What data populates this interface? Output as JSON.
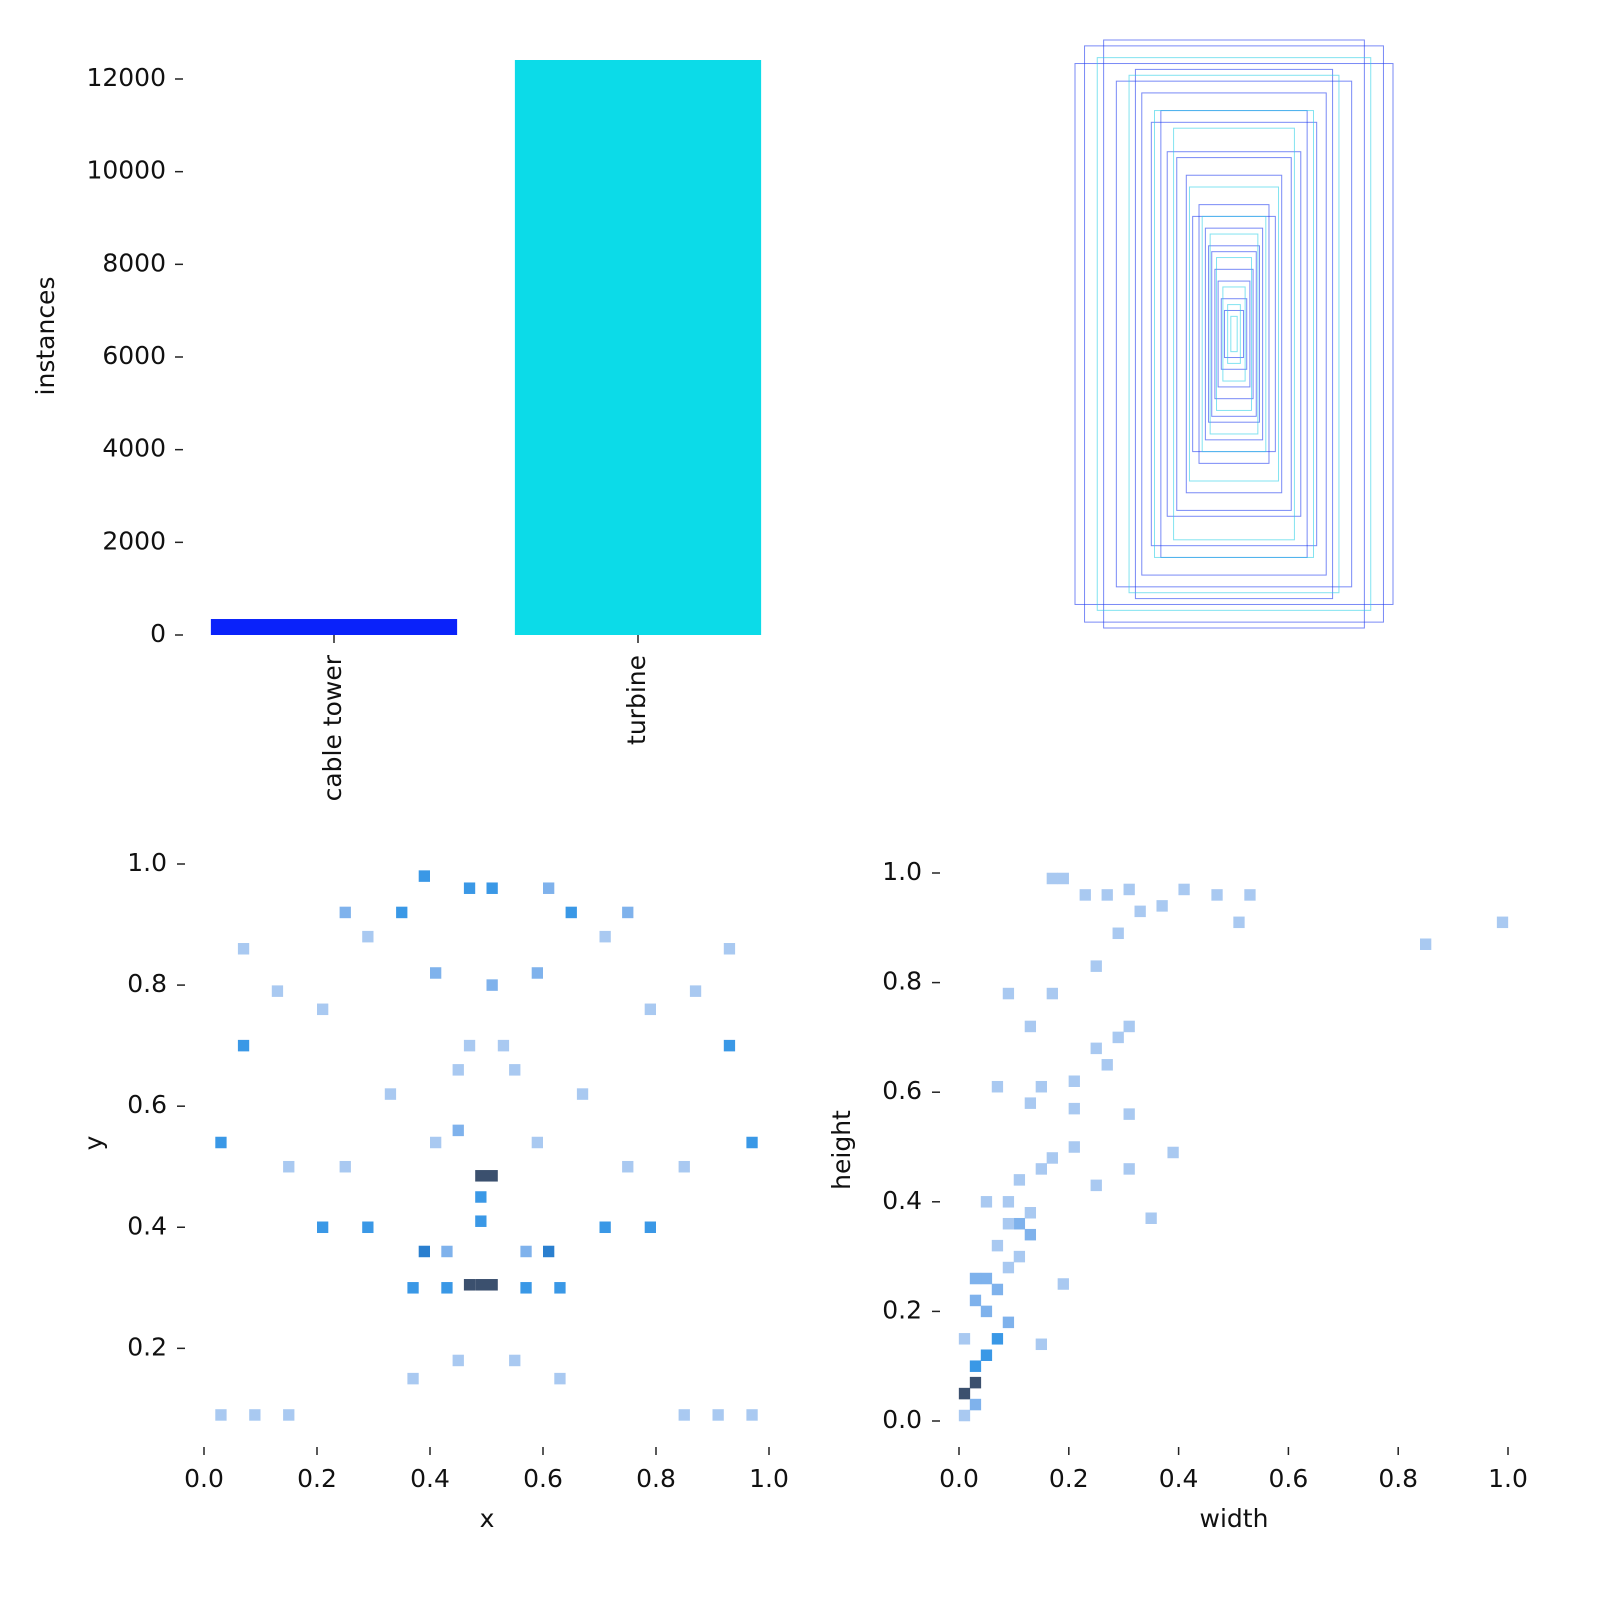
{
  "chart_data": [
    {
      "type": "bar",
      "y_label": "instances",
      "categories": [
        "cable tower",
        "turbine"
      ],
      "values": [
        345,
        12410
      ],
      "colors": [
        "#0a22fa",
        "#0cdbe8"
      ],
      "ylim": [
        0,
        12410
      ],
      "yticks": [
        0,
        2000,
        4000,
        6000,
        8000,
        10000,
        12000
      ]
    },
    {
      "type": "boxes",
      "series": [
        {
          "color": "#1f3cf0",
          "widths": [
            0.94,
            1.0,
            0.82,
            0.74,
            0.58,
            0.52,
            0.42,
            0.36,
            0.3,
            0.26,
            0.22,
            0.18,
            0.16,
            0.14,
            0.12,
            0.1,
            0.08,
            0.06,
            0.46,
            0.62
          ],
          "heights": [
            0.98,
            0.92,
            1.0,
            0.86,
            0.82,
            0.72,
            0.62,
            0.6,
            0.54,
            0.4,
            0.44,
            0.36,
            0.3,
            0.28,
            0.22,
            0.18,
            0.12,
            0.08,
            0.76,
            0.9
          ]
        },
        {
          "color": "#2fd0e6",
          "widths": [
            0.86,
            0.66,
            0.5,
            0.38,
            0.28,
            0.2,
            0.15,
            0.11,
            0.07,
            0.04,
            0.02
          ],
          "heights": [
            0.94,
            0.88,
            0.76,
            0.7,
            0.5,
            0.4,
            0.34,
            0.26,
            0.16,
            0.1,
            0.06
          ]
        }
      ]
    },
    {
      "type": "heatmap",
      "x_label": "x",
      "y_label": "y",
      "xlim": [
        0,
        1
      ],
      "ylim": [
        0.08,
        1.0
      ],
      "xticks": [
        {
          "value": 0,
          "label": "0.0"
        },
        {
          "value": 0.2,
          "label": "0.2"
        },
        {
          "value": 0.4,
          "label": "0.4"
        },
        {
          "value": 0.6,
          "label": "0.6"
        },
        {
          "value": 0.8,
          "label": "0.8"
        },
        {
          "value": 1,
          "label": "1.0"
        }
      ],
      "yticks": [
        {
          "value": 0.2,
          "label": "0.2"
        },
        {
          "value": 0.4,
          "label": "0.4"
        },
        {
          "value": 0.6,
          "label": "0.6"
        },
        {
          "value": 0.8,
          "label": "0.8"
        },
        {
          "value": 1,
          "label": "1.0"
        }
      ],
      "colors": [
        "#a9c9f1",
        "#7fb2ec",
        "#3a98e6",
        "#2a7fcf",
        "#3b506e"
      ],
      "x": [
        0.49,
        0.51,
        0.47,
        0.49,
        0.51,
        0.39,
        0.61,
        0.39,
        0.47,
        0.51,
        0.61,
        0.25,
        0.35,
        0.65,
        0.75,
        0.07,
        0.93,
        0.03,
        0.97,
        0.21,
        0.29,
        0.71,
        0.79,
        0.49,
        0.49,
        0.43,
        0.57,
        0.37,
        0.63,
        0.43,
        0.57,
        0.03,
        0.09,
        0.15,
        0.85,
        0.91,
        0.97,
        0.45,
        0.55,
        0.37,
        0.63,
        0.07,
        0.93,
        0.13,
        0.87,
        0.47,
        0.53,
        0.41,
        0.59,
        0.15,
        0.85,
        0.25,
        0.75,
        0.33,
        0.67,
        0.45,
        0.55,
        0.21,
        0.79,
        0.41,
        0.59,
        0.29,
        0.71,
        0.51,
        0.45
      ],
      "y": [
        0.485,
        0.485,
        0.305,
        0.305,
        0.305,
        0.36,
        0.36,
        0.98,
        0.96,
        0.96,
        0.96,
        0.92,
        0.92,
        0.92,
        0.92,
        0.7,
        0.7,
        0.54,
        0.54,
        0.4,
        0.4,
        0.4,
        0.4,
        0.45,
        0.41,
        0.36,
        0.36,
        0.3,
        0.3,
        0.3,
        0.3,
        0.09,
        0.09,
        0.09,
        0.09,
        0.09,
        0.09,
        0.18,
        0.18,
        0.15,
        0.15,
        0.86,
        0.86,
        0.79,
        0.79,
        0.7,
        0.7,
        0.54,
        0.54,
        0.5,
        0.5,
        0.5,
        0.5,
        0.62,
        0.62,
        0.66,
        0.66,
        0.76,
        0.76,
        0.82,
        0.82,
        0.88,
        0.88,
        0.8,
        0.56
      ],
      "counts": [
        5,
        5,
        5,
        5,
        5,
        4,
        4,
        3,
        3,
        3,
        2,
        2,
        3,
        3,
        2,
        3,
        3,
        3,
        3,
        3,
        3,
        3,
        3,
        3,
        3,
        2,
        2,
        3,
        3,
        3,
        3,
        1,
        1,
        1,
        1,
        1,
        1,
        1,
        1,
        1,
        1,
        1,
        1,
        1,
        1,
        1,
        1,
        1,
        1,
        1,
        1,
        1,
        1,
        1,
        1,
        1,
        1,
        1,
        1,
        2,
        2,
        1,
        1,
        2,
        2
      ]
    },
    {
      "type": "heatmap",
      "x_label": "width",
      "y_label": "height",
      "xlim": [
        0,
        1
      ],
      "ylim": [
        0,
        1
      ],
      "xticks": [
        {
          "value": 0,
          "label": "0.0"
        },
        {
          "value": 0.2,
          "label": "0.2"
        },
        {
          "value": 0.4,
          "label": "0.4"
        },
        {
          "value": 0.6,
          "label": "0.6"
        },
        {
          "value": 0.8,
          "label": "0.8"
        },
        {
          "value": 1,
          "label": "1.0"
        }
      ],
      "yticks": [
        {
          "value": 0,
          "label": "0.0"
        },
        {
          "value": 0.2,
          "label": "0.2"
        },
        {
          "value": 0.4,
          "label": "0.4"
        },
        {
          "value": 0.6,
          "label": "0.6"
        },
        {
          "value": 0.8,
          "label": "0.8"
        },
        {
          "value": 1,
          "label": "1.0"
        }
      ],
      "colors": [
        "#a9c9f1",
        "#7fb2ec",
        "#3a98e6",
        "#2a7fcf",
        "#3b506e"
      ],
      "x": [
        0.01,
        0.03,
        0.03,
        0.05,
        0.07,
        0.05,
        0.09,
        0.11,
        0.13,
        0.01,
        0.03,
        0.01,
        0.03,
        0.05,
        0.07,
        0.03,
        0.09,
        0.11,
        0.07,
        0.09,
        0.05,
        0.09,
        0.13,
        0.11,
        0.15,
        0.19,
        0.15,
        0.17,
        0.21,
        0.25,
        0.31,
        0.39,
        0.35,
        0.13,
        0.21,
        0.31,
        0.07,
        0.15,
        0.21,
        0.27,
        0.29,
        0.31,
        0.25,
        0.13,
        0.09,
        0.17,
        0.25,
        0.29,
        0.33,
        0.31,
        0.17,
        0.19,
        0.23,
        0.27,
        0.37,
        0.41,
        0.47,
        0.51,
        0.53,
        0.85,
        0.99
      ],
      "y": [
        0.05,
        0.07,
        0.1,
        0.12,
        0.15,
        0.2,
        0.18,
        0.36,
        0.34,
        0.01,
        0.03,
        0.15,
        0.22,
        0.26,
        0.24,
        0.26,
        0.28,
        0.3,
        0.32,
        0.36,
        0.4,
        0.4,
        0.38,
        0.44,
        0.46,
        0.25,
        0.14,
        0.48,
        0.5,
        0.43,
        0.46,
        0.49,
        0.37,
        0.58,
        0.57,
        0.56,
        0.61,
        0.61,
        0.62,
        0.65,
        0.7,
        0.72,
        0.68,
        0.72,
        0.78,
        0.78,
        0.83,
        0.89,
        0.93,
        0.97,
        0.99,
        0.99,
        0.96,
        0.96,
        0.94,
        0.97,
        0.96,
        0.91,
        0.96,
        0.87,
        0.91
      ],
      "counts": [
        5,
        5,
        3,
        3,
        3,
        2,
        2,
        2,
        2,
        1,
        2,
        1,
        2,
        2,
        2,
        2,
        1,
        1,
        1,
        1,
        1,
        1,
        1,
        1,
        1,
        1,
        1,
        1,
        1,
        1,
        1,
        1,
        1,
        1,
        1,
        1,
        1,
        1,
        1,
        1,
        1,
        1,
        1,
        1,
        1,
        1,
        1,
        1,
        1,
        1,
        1,
        1,
        1,
        1,
        1,
        1,
        1,
        1,
        1,
        1,
        1
      ]
    }
  ]
}
